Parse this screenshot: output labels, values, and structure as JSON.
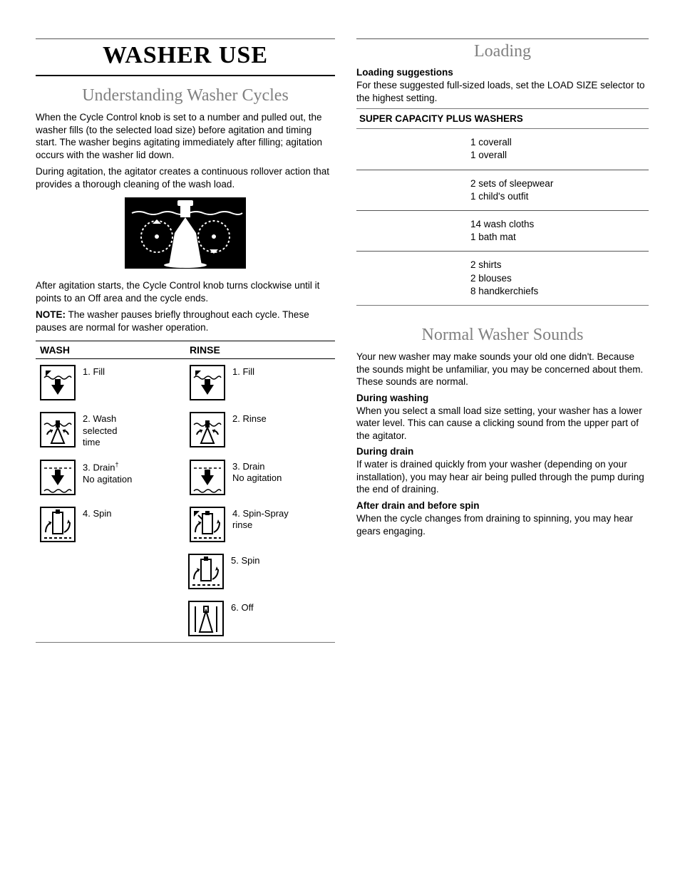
{
  "colors": {
    "text": "#000000",
    "gray_title": "#808080",
    "rule": "#000000",
    "rule_light": "#777777",
    "bg": "#ffffff"
  },
  "fonts": {
    "serif": "Georgia",
    "sans": "Arial",
    "main_title_size": 34,
    "section_title_size": 24,
    "body_size": 13.5
  },
  "left": {
    "main_title": "WASHER USE",
    "section_title": "Understanding Washer Cycles",
    "para1": "When the Cycle Control knob is set to a number and pulled out, the washer fills (to the selected load size) before agitation and timing start. The washer begins agitating immediately after filling; agitation occurs with the washer lid down.",
    "para2": "During agitation, the agitator creates a continuous rollover action that provides a thorough cleaning of the wash load.",
    "para3": "After agitation starts, the Cycle Control knob turns clockwise until it points to an Off area and the cycle ends.",
    "note_label": "NOTE:",
    "note_text": " The washer pauses briefly throughout each cycle. These pauses are normal for washer operation.",
    "table": {
      "headers": [
        "WASH",
        "RINSE"
      ],
      "rows": [
        {
          "wash": "1. Fill",
          "wash_icon": "fill",
          "rinse": "1. Fill",
          "rinse_icon": "fill"
        },
        {
          "wash": "2. Wash\nselected\ntime",
          "wash_icon": "agitate",
          "rinse": "2. Rinse",
          "rinse_icon": "agitate"
        },
        {
          "wash": "3. Drain†\nNo agitation",
          "wash_icon": "drain",
          "rinse": "3. Drain\nNo agitation",
          "rinse_icon": "drain"
        },
        {
          "wash": "4. Spin",
          "wash_icon": "spin",
          "rinse": "4. Spin-Spray\nrinse",
          "rinse_icon": "spin-spray"
        },
        {
          "wash": "",
          "wash_icon": "",
          "rinse": "5. Spin",
          "rinse_icon": "spin"
        },
        {
          "wash": "",
          "wash_icon": "",
          "rinse": "6. Off",
          "rinse_icon": "off"
        }
      ]
    }
  },
  "right": {
    "loading_title": "Loading",
    "loading_sub": "Loading suggestions",
    "loading_text": "For these suggested full-sized loads, set the LOAD SIZE selector to the highest setting.",
    "load_table_header": "SUPER CAPACITY PLUS WASHERS",
    "load_rows": [
      [
        "1 coverall",
        "1 overall"
      ],
      [
        "2 sets of sleepwear",
        "1 child's outfit"
      ],
      [
        "14 wash cloths",
        "1 bath mat"
      ],
      [
        "2 shirts",
        "2 blouses",
        "8 handkerchiefs"
      ]
    ],
    "sounds_title": "Normal Washer Sounds",
    "sounds_intro": "Your new washer may make sounds your old one didn't. Because the sounds might be unfamiliar, you may be concerned about them. These sounds are normal.",
    "sounds_sections": [
      {
        "heading": "During washing",
        "text": "When you select a small load size setting, your washer has a lower water level. This can cause a clicking sound from the upper part of the agitator."
      },
      {
        "heading": "During drain",
        "text": "If water is drained quickly from your washer (depending on your installation), you may hear air being pulled through the pump during the end of draining."
      },
      {
        "heading": "After drain and before spin",
        "text": "When the cycle changes from draining to spinning, you may hear gears engaging."
      }
    ]
  }
}
